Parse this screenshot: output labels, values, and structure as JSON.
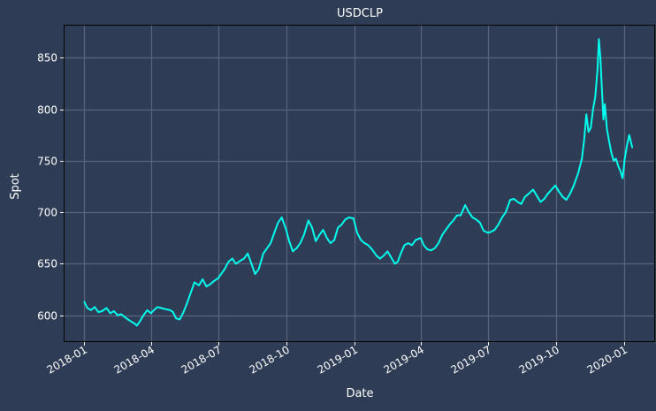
{
  "colors": {
    "background": "#2e3d55",
    "axes_face": "#2e3d55",
    "grid": "#58657c",
    "axis_spine": "#000000",
    "text": "#ffffff",
    "line": "#00ffee"
  },
  "chart_data": {
    "type": "line",
    "title": "USDCLP",
    "xlabel": "Date",
    "ylabel": "Spot",
    "x_axis_kind": "date",
    "xlim": [
      "2017-12-04",
      "2020-02-12"
    ],
    "ylim": [
      574,
      882
    ],
    "grid": true,
    "legend": "none",
    "x_ticks": [
      {
        "date": "2018-01-01",
        "label": "2018-01"
      },
      {
        "date": "2018-04-01",
        "label": "2018-04"
      },
      {
        "date": "2018-07-01",
        "label": "2018-07"
      },
      {
        "date": "2018-10-01",
        "label": "2018-10"
      },
      {
        "date": "2019-01-01",
        "label": "2019-01"
      },
      {
        "date": "2019-04-01",
        "label": "2019-04"
      },
      {
        "date": "2019-07-01",
        "label": "2019-07"
      },
      {
        "date": "2019-10-01",
        "label": "2019-10"
      },
      {
        "date": "2020-01-01",
        "label": "2020-01"
      }
    ],
    "y_ticks": [
      {
        "value": 600,
        "label": "600"
      },
      {
        "value": 650,
        "label": "650"
      },
      {
        "value": 700,
        "label": "700"
      },
      {
        "value": 750,
        "label": "750"
      },
      {
        "value": 800,
        "label": "800"
      },
      {
        "value": 850,
        "label": "850"
      }
    ],
    "series": [
      {
        "color": "#00ffee",
        "points": [
          [
            "2018-01-01",
            613
          ],
          [
            "2018-01-05",
            607
          ],
          [
            "2018-01-10",
            605
          ],
          [
            "2018-01-15",
            608
          ],
          [
            "2018-01-20",
            603
          ],
          [
            "2018-01-25",
            604
          ],
          [
            "2018-01-31",
            607
          ],
          [
            "2018-02-05",
            602
          ],
          [
            "2018-02-10",
            604
          ],
          [
            "2018-02-15",
            600
          ],
          [
            "2018-02-20",
            601
          ],
          [
            "2018-02-25",
            598
          ],
          [
            "2018-03-01",
            596
          ],
          [
            "2018-03-05",
            594
          ],
          [
            "2018-03-10",
            592
          ],
          [
            "2018-03-13",
            590
          ],
          [
            "2018-03-17",
            594
          ],
          [
            "2018-03-22",
            600
          ],
          [
            "2018-03-27",
            605
          ],
          [
            "2018-04-01",
            602
          ],
          [
            "2018-04-05",
            605
          ],
          [
            "2018-04-10",
            608
          ],
          [
            "2018-04-15",
            607
          ],
          [
            "2018-04-20",
            606
          ],
          [
            "2018-04-27",
            605
          ],
          [
            "2018-05-01",
            603
          ],
          [
            "2018-05-05",
            597
          ],
          [
            "2018-05-10",
            596
          ],
          [
            "2018-05-15",
            603
          ],
          [
            "2018-05-20",
            612
          ],
          [
            "2018-05-25",
            622
          ],
          [
            "2018-05-30",
            632
          ],
          [
            "2018-06-05",
            629
          ],
          [
            "2018-06-10",
            635
          ],
          [
            "2018-06-15",
            628
          ],
          [
            "2018-06-20",
            630
          ],
          [
            "2018-06-25",
            633
          ],
          [
            "2018-07-01",
            636
          ],
          [
            "2018-07-05",
            640
          ],
          [
            "2018-07-10",
            645
          ],
          [
            "2018-07-15",
            652
          ],
          [
            "2018-07-20",
            655
          ],
          [
            "2018-07-25",
            650
          ],
          [
            "2018-07-31",
            653
          ],
          [
            "2018-08-05",
            655
          ],
          [
            "2018-08-10",
            660
          ],
          [
            "2018-08-15",
            650
          ],
          [
            "2018-08-20",
            640
          ],
          [
            "2018-08-25",
            645
          ],
          [
            "2018-08-31",
            660
          ],
          [
            "2018-09-05",
            665
          ],
          [
            "2018-09-10",
            670
          ],
          [
            "2018-09-15",
            680
          ],
          [
            "2018-09-20",
            690
          ],
          [
            "2018-09-25",
            695
          ],
          [
            "2018-10-01",
            683
          ],
          [
            "2018-10-05",
            672
          ],
          [
            "2018-10-10",
            662
          ],
          [
            "2018-10-15",
            665
          ],
          [
            "2018-10-20",
            670
          ],
          [
            "2018-10-25",
            678
          ],
          [
            "2018-10-31",
            692
          ],
          [
            "2018-11-05",
            685
          ],
          [
            "2018-11-10",
            672
          ],
          [
            "2018-11-15",
            678
          ],
          [
            "2018-11-20",
            683
          ],
          [
            "2018-11-25",
            675
          ],
          [
            "2018-11-30",
            670
          ],
          [
            "2018-12-05",
            673
          ],
          [
            "2018-12-10",
            685
          ],
          [
            "2018-12-15",
            688
          ],
          [
            "2018-12-20",
            693
          ],
          [
            "2018-12-25",
            695
          ],
          [
            "2018-12-31",
            694
          ],
          [
            "2019-01-05",
            680
          ],
          [
            "2019-01-10",
            673
          ],
          [
            "2019-01-15",
            670
          ],
          [
            "2019-01-20",
            668
          ],
          [
            "2019-01-25",
            664
          ],
          [
            "2019-01-31",
            658
          ],
          [
            "2019-02-05",
            655
          ],
          [
            "2019-02-10",
            658
          ],
          [
            "2019-02-15",
            662
          ],
          [
            "2019-02-20",
            656
          ],
          [
            "2019-02-25",
            650
          ],
          [
            "2019-03-01",
            652
          ],
          [
            "2019-03-05",
            660
          ],
          [
            "2019-03-10",
            668
          ],
          [
            "2019-03-15",
            670
          ],
          [
            "2019-03-20",
            668
          ],
          [
            "2019-03-25",
            673
          ],
          [
            "2019-04-01",
            675
          ],
          [
            "2019-04-05",
            668
          ],
          [
            "2019-04-10",
            664
          ],
          [
            "2019-04-15",
            663
          ],
          [
            "2019-04-20",
            665
          ],
          [
            "2019-04-25",
            670
          ],
          [
            "2019-04-30",
            678
          ],
          [
            "2019-05-05",
            683
          ],
          [
            "2019-05-10",
            688
          ],
          [
            "2019-05-15",
            692
          ],
          [
            "2019-05-20",
            697
          ],
          [
            "2019-05-25",
            697
          ],
          [
            "2019-05-31",
            707
          ],
          [
            "2019-06-05",
            700
          ],
          [
            "2019-06-10",
            695
          ],
          [
            "2019-06-15",
            693
          ],
          [
            "2019-06-20",
            690
          ],
          [
            "2019-06-25",
            682
          ],
          [
            "2019-07-01",
            680
          ],
          [
            "2019-07-05",
            681
          ],
          [
            "2019-07-10",
            683
          ],
          [
            "2019-07-15",
            688
          ],
          [
            "2019-07-20",
            695
          ],
          [
            "2019-07-25",
            700
          ],
          [
            "2019-07-31",
            712
          ],
          [
            "2019-08-05",
            713
          ],
          [
            "2019-08-10",
            710
          ],
          [
            "2019-08-15",
            708
          ],
          [
            "2019-08-20",
            715
          ],
          [
            "2019-08-25",
            718
          ],
          [
            "2019-08-31",
            722
          ],
          [
            "2019-09-05",
            716
          ],
          [
            "2019-09-10",
            710
          ],
          [
            "2019-09-15",
            713
          ],
          [
            "2019-09-20",
            718
          ],
          [
            "2019-09-25",
            722
          ],
          [
            "2019-09-30",
            726
          ],
          [
            "2019-10-05",
            720
          ],
          [
            "2019-10-10",
            715
          ],
          [
            "2019-10-15",
            712
          ],
          [
            "2019-10-20",
            718
          ],
          [
            "2019-10-25",
            726
          ],
          [
            "2019-10-31",
            738
          ],
          [
            "2019-11-05",
            752
          ],
          [
            "2019-11-08",
            770
          ],
          [
            "2019-11-11",
            795
          ],
          [
            "2019-11-14",
            778
          ],
          [
            "2019-11-17",
            782
          ],
          [
            "2019-11-20",
            800
          ],
          [
            "2019-11-23",
            812
          ],
          [
            "2019-11-26",
            838
          ],
          [
            "2019-11-28",
            868
          ],
          [
            "2019-11-30",
            850
          ],
          [
            "2019-12-02",
            820
          ],
          [
            "2019-12-04",
            790
          ],
          [
            "2019-12-06",
            805
          ],
          [
            "2019-12-09",
            780
          ],
          [
            "2019-12-12",
            768
          ],
          [
            "2019-12-15",
            757
          ],
          [
            "2019-12-18",
            750
          ],
          [
            "2019-12-21",
            752
          ],
          [
            "2019-12-24",
            745
          ],
          [
            "2019-12-27",
            740
          ],
          [
            "2019-12-30",
            733
          ],
          [
            "2020-01-02",
            752
          ],
          [
            "2020-01-05",
            765
          ],
          [
            "2020-01-08",
            775
          ],
          [
            "2020-01-12",
            763
          ]
        ]
      }
    ]
  }
}
